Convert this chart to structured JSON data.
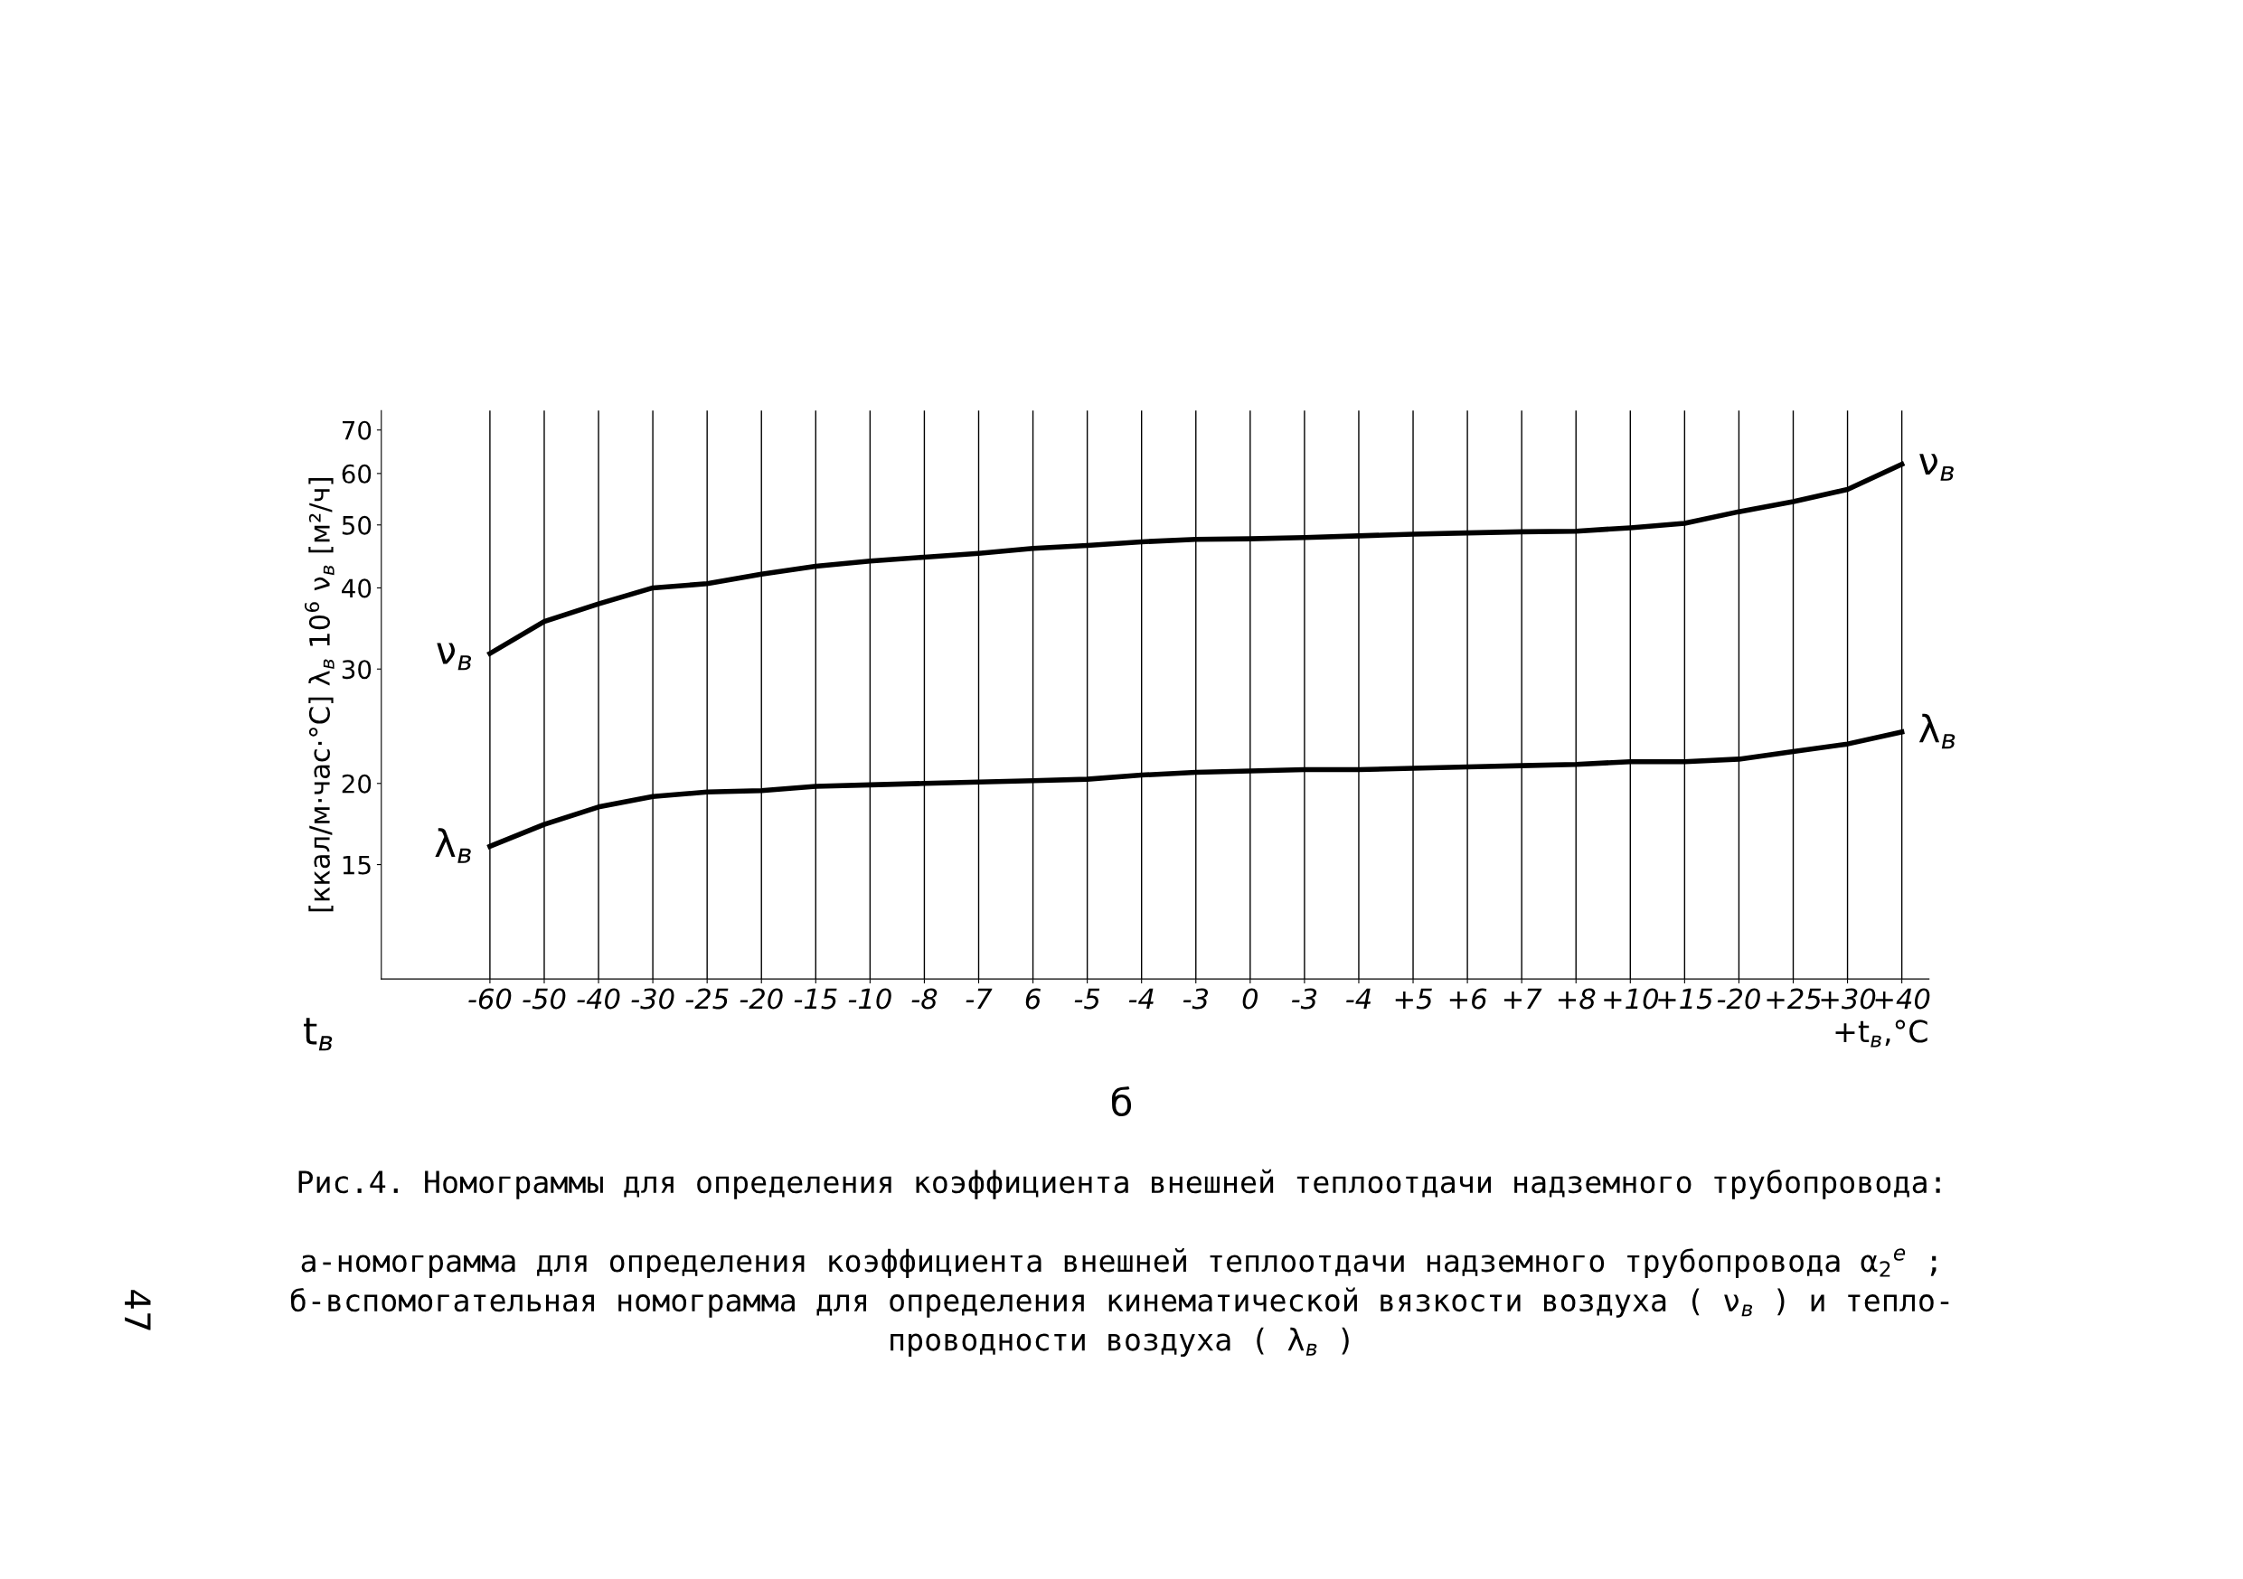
{
  "chart_data": {
    "type": "line",
    "title": "Рис.4. Номограммы для определения коэффициента внешней теплоотдачи надземного трубопровода:",
    "ylabel": "[ккал/м·час·°С] λ$_{в}$ 10$^{6}$ ν$_{в}$ [м²/ч]",
    "xlabel": "+t$_{в}$,°С",
    "annotations": [
      "t$_{в}$",
      "б",
      "а-номограмма для определения коэффициента внешней теплоотдачи надземного трубопровода α$_{2}$$^{е}$ ;",
      "б-вспомогательная номограмма для определения кинематической вязкости воздуха ( ν$_{в}$ ) и тепло-",
      "проводности воздуха ( λ$_{в}$ )",
      "47"
    ],
    "categories": [
      "-60",
      "-50",
      "-40",
      "-30",
      "-25",
      "-20",
      "-15",
      "-10",
      "-8",
      "-7",
      "6",
      "-5",
      "-4",
      "-3",
      "0",
      "-3",
      "-4",
      "+5",
      "+6",
      "+7",
      "+8",
      "+10",
      "+15",
      "-20",
      "+25",
      "+30",
      "+40"
    ],
    "series": [
      {
        "name": "ν$_{в}$",
        "color": "#000000",
        "values": [
          31.7,
          35.5,
          37.8,
          40,
          40.6,
          42,
          43.2,
          44,
          44.6,
          45.2,
          46,
          46.5,
          47.1,
          47.5,
          47.6,
          47.8,
          48.1,
          48.4,
          48.6,
          48.8,
          48.9,
          49.5,
          50.3,
          52.4,
          54.3,
          56.7,
          62
        ]
      },
      {
        "name": "λ$_{в}$",
        "color": "#000000",
        "values": [
          16.0,
          17.3,
          18.4,
          19.1,
          19.4,
          19.5,
          19.8,
          19.9,
          20.0,
          20.1,
          20.2,
          20.3,
          20.6,
          20.8,
          20.9,
          21.0,
          21.0,
          21.1,
          21.2,
          21.3,
          21.4,
          21.6,
          21.6,
          21.8,
          22.4,
          23.0,
          24.0
        ]
      }
    ],
    "log": true,
    "ylim": [
      10,
      75
    ],
    "yticks": [
      15,
      20,
      30,
      40,
      50,
      60,
      70
    ],
    "grid": "x",
    "marker": "none",
    "line_style": "solid",
    "legend": false
  }
}
